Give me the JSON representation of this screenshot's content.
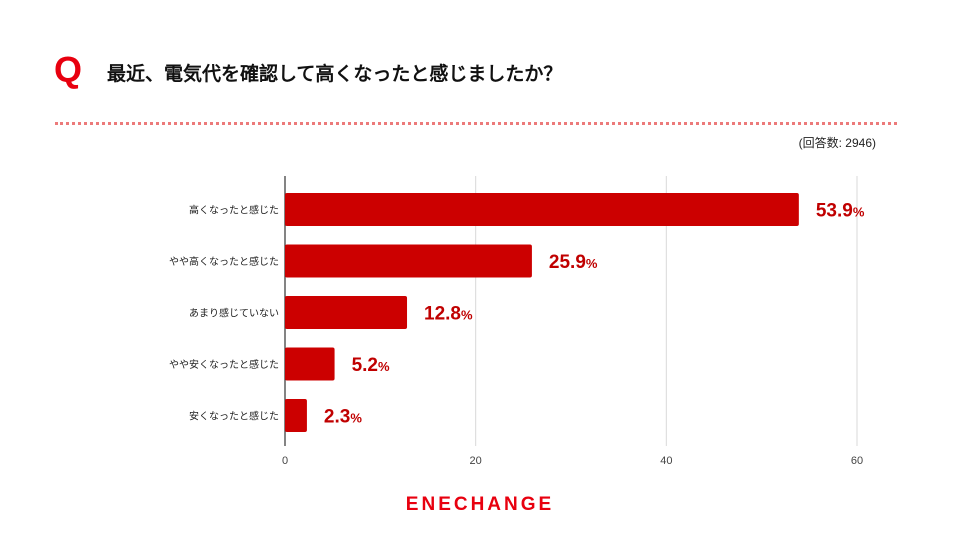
{
  "header": {
    "q_mark": "Q",
    "question": "最近、電気代を確認して高くなったと感じましたか？",
    "respondents": "(回答数: 2946)"
  },
  "chart_data": {
    "type": "bar",
    "orientation": "horizontal",
    "title": "最近、電気代を確認して高くなったと感じましたか？",
    "categories": [
      "高くなったと感じた",
      "やや高くなったと感じた",
      "あまり感じていない",
      "やや安くなったと感じた",
      "安くなったと感じた"
    ],
    "values": [
      53.9,
      25.9,
      12.8,
      5.2,
      2.3
    ],
    "value_labels": [
      "53.9",
      "25.9",
      "12.8",
      "5.2",
      "2.3"
    ],
    "value_suffix": "%",
    "xlim": [
      0,
      60
    ],
    "xticks": [
      0,
      20,
      40,
      60
    ],
    "xlabel": "",
    "ylabel": "",
    "grid": true,
    "bar_color": "#cc0000",
    "label_color": "#c00000"
  },
  "footer": {
    "brand": "ENECHANGE",
    "brand_color": "#e8000f"
  }
}
